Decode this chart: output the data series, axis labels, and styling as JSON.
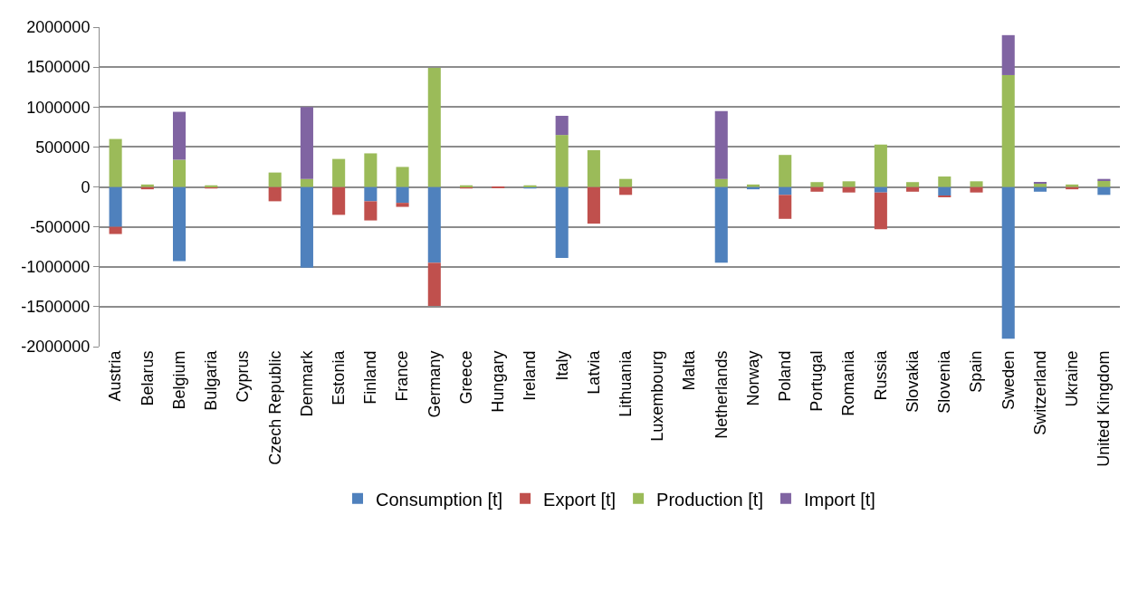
{
  "chart_data": {
    "type": "bar",
    "stacked": true,
    "categories": [
      "Austria",
      "Belarus",
      "Belgium",
      "Bulgaria",
      "Cyprus",
      "Czech Republic",
      "Denmark",
      "Estonia",
      "Finland",
      "France",
      "Germany",
      "Greece",
      "Hungary",
      "Ireland",
      "Italy",
      "Latvia",
      "Lithuania",
      "Luxembourg",
      "Malta",
      "Netherlands",
      "Norway",
      "Poland",
      "Portugal",
      "Romania",
      "Russia",
      "Slovakia",
      "Slovenia",
      "Spain",
      "Sweden",
      "Switzerland",
      "Ukraine",
      "United Kingdom"
    ],
    "series": [
      {
        "name": "Consumption [t]",
        "color": "#4f81bd",
        "values": [
          -500000,
          null,
          -930000,
          null,
          null,
          null,
          -1010000,
          null,
          -180000,
          -200000,
          -950000,
          null,
          null,
          -20000,
          -890000,
          null,
          null,
          null,
          null,
          -950000,
          -30000,
          -100000,
          null,
          null,
          -70000,
          null,
          -110000,
          null,
          -1900000,
          -60000,
          null,
          -100000
        ]
      },
      {
        "name": "Export [t]",
        "color": "#c0504d",
        "values": [
          -90000,
          -30000,
          null,
          -20000,
          null,
          -180000,
          null,
          -350000,
          -240000,
          -50000,
          -540000,
          -20000,
          -10000,
          null,
          null,
          -460000,
          -100000,
          null,
          null,
          null,
          null,
          -300000,
          -60000,
          -70000,
          -460000,
          -60000,
          -20000,
          -70000,
          null,
          null,
          -30000,
          null
        ]
      },
      {
        "name": "Production [t]",
        "color": "#9bbb59",
        "values": [
          600000,
          30000,
          340000,
          20000,
          null,
          180000,
          100000,
          350000,
          420000,
          250000,
          1490000,
          20000,
          null,
          20000,
          650000,
          460000,
          100000,
          null,
          null,
          100000,
          30000,
          400000,
          60000,
          70000,
          530000,
          60000,
          130000,
          70000,
          1400000,
          50000,
          30000,
          80000
        ]
      },
      {
        "name": "Import [t]",
        "color": "#8064a2",
        "values": [
          null,
          null,
          600000,
          null,
          null,
          null,
          900000,
          null,
          null,
          null,
          null,
          null,
          null,
          null,
          240000,
          null,
          null,
          null,
          null,
          850000,
          null,
          null,
          null,
          null,
          null,
          null,
          null,
          null,
          500000,
          10000,
          null,
          20000
        ]
      }
    ],
    "ylim": [
      -2000000,
      2000000
    ],
    "yticks": [
      -2000000,
      -1500000,
      -1000000,
      -500000,
      0,
      500000,
      1000000,
      1500000,
      2000000
    ],
    "grid": "y",
    "legend": "bottom"
  }
}
